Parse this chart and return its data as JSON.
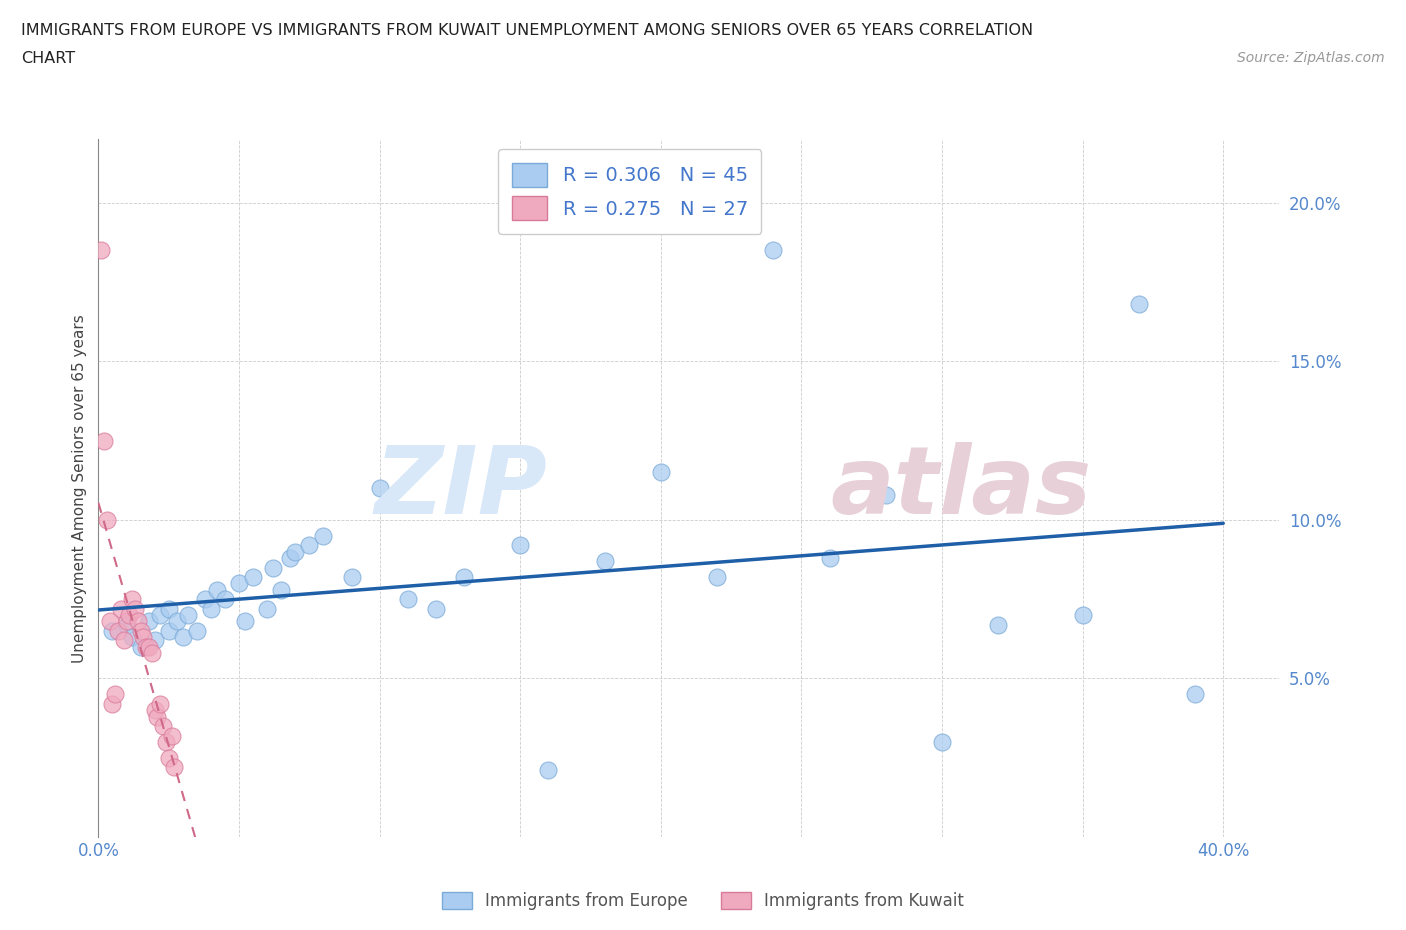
{
  "title_line1": "IMMIGRANTS FROM EUROPE VS IMMIGRANTS FROM KUWAIT UNEMPLOYMENT AMONG SENIORS OVER 65 YEARS CORRELATION",
  "title_line2": "CHART",
  "source": "Source: ZipAtlas.com",
  "ylabel": "Unemployment Among Seniors over 65 years",
  "xlim": [
    0.0,
    0.42
  ],
  "ylim": [
    0.0,
    0.22
  ],
  "xticks": [
    0.0,
    0.05,
    0.1,
    0.15,
    0.2,
    0.25,
    0.3,
    0.35,
    0.4
  ],
  "yticks": [
    0.0,
    0.05,
    0.1,
    0.15,
    0.2
  ],
  "europe_color": "#aaccf0",
  "europe_edge": "#7aaad8",
  "kuwait_color": "#f0aac0",
  "kuwait_edge": "#d87a9a",
  "trend_europe_color": "#1e5fa8",
  "trend_kuwait_color": "#d06888",
  "tick_color": "#5588cc",
  "europe_x": [
    0.005,
    0.01,
    0.012,
    0.015,
    0.018,
    0.02,
    0.022,
    0.025,
    0.025,
    0.028,
    0.03,
    0.032,
    0.035,
    0.038,
    0.04,
    0.042,
    0.045,
    0.05,
    0.052,
    0.055,
    0.06,
    0.062,
    0.065,
    0.068,
    0.07,
    0.075,
    0.08,
    0.09,
    0.1,
    0.11,
    0.12,
    0.13,
    0.15,
    0.16,
    0.18,
    0.2,
    0.22,
    0.24,
    0.26,
    0.28,
    0.3,
    0.32,
    0.35,
    0.37,
    0.39
  ],
  "europe_y": [
    0.065,
    0.067,
    0.063,
    0.06,
    0.068,
    0.062,
    0.07,
    0.065,
    0.072,
    0.068,
    0.063,
    0.07,
    0.065,
    0.075,
    0.072,
    0.078,
    0.075,
    0.08,
    0.068,
    0.082,
    0.072,
    0.085,
    0.078,
    0.088,
    0.09,
    0.092,
    0.095,
    0.082,
    0.11,
    0.075,
    0.072,
    0.082,
    0.092,
    0.021,
    0.087,
    0.115,
    0.082,
    0.185,
    0.088,
    0.108,
    0.03,
    0.067,
    0.07,
    0.168,
    0.045
  ],
  "kuwait_x": [
    0.001,
    0.002,
    0.003,
    0.004,
    0.005,
    0.006,
    0.007,
    0.008,
    0.009,
    0.01,
    0.011,
    0.012,
    0.013,
    0.014,
    0.015,
    0.016,
    0.017,
    0.018,
    0.019,
    0.02,
    0.021,
    0.022,
    0.023,
    0.024,
    0.025,
    0.026,
    0.027
  ],
  "kuwait_y": [
    0.185,
    0.125,
    0.1,
    0.068,
    0.042,
    0.045,
    0.065,
    0.072,
    0.062,
    0.068,
    0.07,
    0.075,
    0.072,
    0.068,
    0.065,
    0.063,
    0.06,
    0.06,
    0.058,
    0.04,
    0.038,
    0.042,
    0.035,
    0.03,
    0.025,
    0.032,
    0.022
  ]
}
